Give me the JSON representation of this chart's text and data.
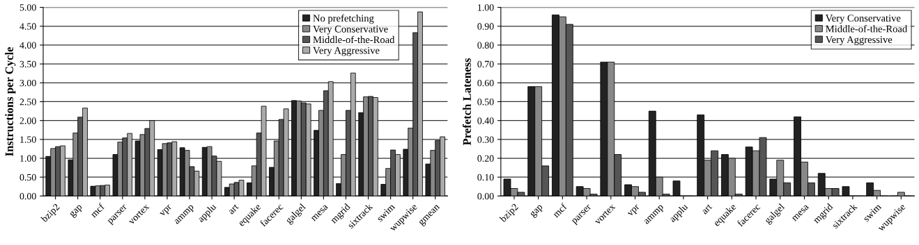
{
  "chart_data": [
    {
      "type": "bar",
      "ylabel": "Instructions per Cycle",
      "categories": [
        "bzip2",
        "gap",
        "mcf",
        "parser",
        "vortex",
        "vpr",
        "ammp",
        "applu",
        "art",
        "equake",
        "facerec",
        "galgel",
        "mesa",
        "mgrid",
        "sixtrack",
        "swim",
        "wupwise",
        "gmean"
      ],
      "series": [
        {
          "name": "No prefetching",
          "color": "#222222",
          "values": [
            1.05,
            0.96,
            0.26,
            1.1,
            1.46,
            1.23,
            1.28,
            1.29,
            0.23,
            0.35,
            0.76,
            2.53,
            1.74,
            0.33,
            2.21,
            0.31,
            1.24,
            0.85
          ]
        },
        {
          "name": "Very Conservative",
          "color": "#888888",
          "values": [
            1.26,
            1.67,
            0.27,
            1.43,
            1.63,
            1.39,
            1.21,
            1.31,
            0.32,
            0.8,
            1.46,
            2.52,
            2.27,
            1.1,
            2.63,
            0.73,
            1.8,
            1.21
          ]
        },
        {
          "name": "Middle-of-the-Road",
          "color": "#555555",
          "values": [
            1.31,
            2.09,
            0.28,
            1.54,
            1.79,
            1.41,
            0.78,
            1.06,
            0.36,
            1.67,
            2.03,
            2.47,
            2.79,
            2.27,
            2.64,
            1.22,
            4.33,
            1.47
          ]
        },
        {
          "name": "Very Aggressive",
          "color": "#aaaaaa",
          "values": [
            1.33,
            2.33,
            0.29,
            1.66,
            2.0,
            1.44,
            0.66,
            0.92,
            0.42,
            2.38,
            2.31,
            2.44,
            3.03,
            3.26,
            2.61,
            1.1,
            4.88,
            1.57
          ]
        }
      ],
      "ylim": [
        0,
        5
      ],
      "yticks": [
        {
          "value": 0,
          "label": "0.00"
        },
        {
          "value": 0.5,
          "label": "0.50"
        },
        {
          "value": 1,
          "label": "1.00"
        },
        {
          "value": 1.5,
          "label": "1.50"
        },
        {
          "value": 2,
          "label": "2.00"
        },
        {
          "value": 2.5,
          "label": "2.50"
        },
        {
          "value": 3,
          "label": "3.00"
        },
        {
          "value": 3.5,
          "label": "3.50"
        },
        {
          "value": 4,
          "label": "4.00"
        },
        {
          "value": 4.5,
          "label": "4.50"
        },
        {
          "value": 5,
          "label": "5.00"
        }
      ],
      "grid": "y",
      "legend": "top right"
    },
    {
      "type": "bar",
      "ylabel": "Prefetch Lateness",
      "categories": [
        "bzip2",
        "gap",
        "mcf",
        "parser",
        "vortex",
        "vpr",
        "ammp",
        "applu",
        "art",
        "equake",
        "facerec",
        "galgel",
        "mesa",
        "mgrid",
        "sixtrack",
        "swim",
        "wupwise"
      ],
      "series": [
        {
          "name": "Very Conservative",
          "color": "#222222",
          "values": [
            0.09,
            0.58,
            0.96,
            0.05,
            0.71,
            0.06,
            0.45,
            0.08,
            0.43,
            0.22,
            0.26,
            0.09,
            0.42,
            0.12,
            0.05,
            0.07,
            0
          ]
        },
        {
          "name": "Middle-of-the-Road",
          "color": "#888888",
          "values": [
            0.04,
            0.58,
            0.95,
            0.04,
            0.71,
            0.05,
            0.1,
            0,
            0.19,
            0.2,
            0.24,
            0.19,
            0.18,
            0.04,
            0,
            0.03,
            0.02
          ]
        },
        {
          "name": "Very Aggressive",
          "color": "#555555",
          "values": [
            0.02,
            0.16,
            0.91,
            0.01,
            0.22,
            0.02,
            0.01,
            0,
            0.24,
            0.01,
            0.31,
            0.07,
            0.07,
            0.04,
            0,
            0,
            0
          ]
        }
      ],
      "ylim": [
        0,
        1
      ],
      "yticks": [
        {
          "value": 0,
          "label": "0.00"
        },
        {
          "value": 0.1,
          "label": "0.10"
        },
        {
          "value": 0.2,
          "label": "0.20"
        },
        {
          "value": 0.3,
          "label": "0.30"
        },
        {
          "value": 0.4,
          "label": "0.40"
        },
        {
          "value": 0.5,
          "label": "0.50"
        },
        {
          "value": 0.6,
          "label": "0.60"
        },
        {
          "value": 0.7,
          "label": "0.70"
        },
        {
          "value": 0.8,
          "label": "0.80"
        },
        {
          "value": 0.9,
          "label": "0.90"
        },
        {
          "value": 1,
          "label": "1.00"
        }
      ],
      "grid": "y",
      "legend": "top right"
    }
  ]
}
